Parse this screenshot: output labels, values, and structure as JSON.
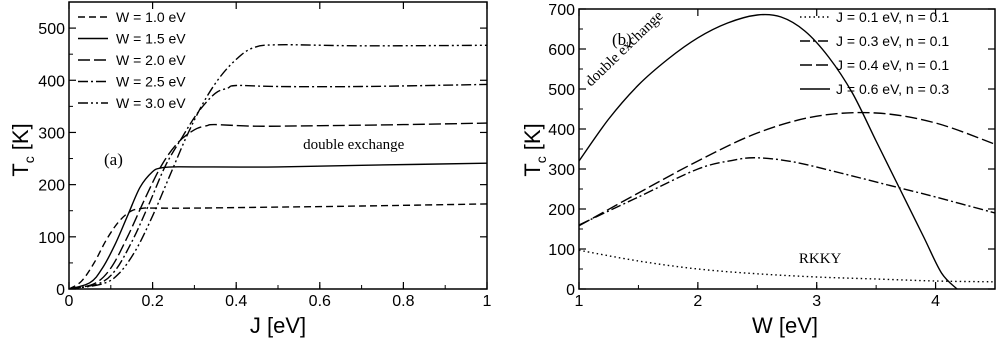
{
  "chart_data": [
    {
      "type": "line",
      "panel_label": "(a)",
      "xlabel": "J [eV]",
      "ylabel_main": "T",
      "ylabel_sub": "c",
      "ylabel_unit": "[K]",
      "xlim": [
        0,
        1
      ],
      "ylim": [
        0,
        550
      ],
      "x_ticks": [
        "0",
        "0.2",
        "0.4",
        "0.6",
        "0.8",
        "1"
      ],
      "y_ticks": [
        "0",
        "100",
        "200",
        "300",
        "400",
        "500"
      ],
      "legend_position": "top-left",
      "annotations": [
        {
          "text": "double exchange",
          "x": 0.56,
          "y": 268
        }
      ],
      "series": [
        {
          "name": "W = 1.0 eV",
          "dash": "dash",
          "x": [
            0,
            0.03,
            0.06,
            0.09,
            0.12,
            0.15,
            0.18,
            0.2,
            0.3,
            0.5,
            0.7,
            1.0
          ],
          "y": [
            0,
            15,
            50,
            95,
            130,
            150,
            155,
            155,
            155,
            157,
            159,
            163
          ]
        },
        {
          "name": "W = 1.5 eV",
          "dash": "solid",
          "x": [
            0,
            0.05,
            0.08,
            0.11,
            0.14,
            0.17,
            0.2,
            0.22,
            0.25,
            0.3,
            0.5,
            0.7,
            1.0
          ],
          "y": [
            0,
            12,
            40,
            85,
            140,
            195,
            225,
            232,
            234,
            234,
            234,
            237,
            241
          ]
        },
        {
          "name": "W = 2.0 eV",
          "dash": "longdash",
          "x": [
            0,
            0.06,
            0.1,
            0.14,
            0.18,
            0.22,
            0.26,
            0.3,
            0.33,
            0.35,
            0.45,
            0.6,
            0.8,
            1.0
          ],
          "y": [
            0,
            10,
            40,
            100,
            170,
            235,
            280,
            305,
            313,
            315,
            312,
            313,
            315,
            318
          ]
        },
        {
          "name": "W = 2.5 eV",
          "dash": "dashdot",
          "x": [
            0,
            0.07,
            0.11,
            0.15,
            0.19,
            0.23,
            0.27,
            0.31,
            0.35,
            0.38,
            0.4,
            0.5,
            0.7,
            1.0
          ],
          "y": [
            0,
            10,
            35,
            90,
            160,
            235,
            290,
            340,
            375,
            385,
            390,
            388,
            388,
            392
          ]
        },
        {
          "name": "W = 3.0 eV",
          "dash": "dashdotdot",
          "x": [
            0,
            0.08,
            0.12,
            0.16,
            0.2,
            0.24,
            0.28,
            0.32,
            0.36,
            0.4,
            0.44,
            0.5,
            0.7,
            1.0
          ],
          "y": [
            0,
            10,
            30,
            75,
            140,
            215,
            290,
            355,
            405,
            440,
            462,
            468,
            466,
            467
          ]
        }
      ]
    },
    {
      "type": "line",
      "panel_label": "(b)",
      "xlabel": "W [eV]",
      "ylabel_main": "T",
      "ylabel_sub": "c",
      "ylabel_unit": "[K]",
      "xlim": [
        1,
        4.5
      ],
      "ylim": [
        0,
        700
      ],
      "x_ticks": [
        "1",
        "2",
        "3",
        "4"
      ],
      "y_ticks": [
        "0",
        "100",
        "200",
        "300",
        "400",
        "500",
        "600",
        "700"
      ],
      "legend_position": "top-right",
      "annotations": [
        {
          "text": "double exchange",
          "x": 1.1,
          "y": 505,
          "rotate": -44
        },
        {
          "text": "RKKY",
          "x": 2.85,
          "y": 65
        }
      ],
      "series": [
        {
          "name": "J = 0.1 eV, n = 0.1",
          "dash": "dotted",
          "x": [
            1,
            1.5,
            2,
            2.5,
            3,
            3.5,
            4,
            4.5
          ],
          "y": [
            97,
            70,
            50,
            38,
            30,
            25,
            20,
            18
          ]
        },
        {
          "name": "J = 0.3 eV, n = 0.1",
          "dash": "dashdot",
          "x": [
            1,
            1.5,
            2,
            2.3,
            2.5,
            2.8,
            3.2,
            3.6,
            4,
            4.5
          ],
          "y": [
            160,
            230,
            300,
            322,
            328,
            318,
            290,
            260,
            230,
            190
          ]
        },
        {
          "name": "J = 0.4 eV, n = 0.1",
          "dash": "longdash",
          "x": [
            1,
            1.5,
            2,
            2.5,
            3,
            3.5,
            4,
            4.5
          ],
          "y": [
            158,
            240,
            320,
            390,
            432,
            440,
            415,
            362
          ]
        },
        {
          "name": "J = 0.6 eV, n = 0.3",
          "dash": "solid",
          "x": [
            1,
            1.25,
            1.5,
            1.75,
            2,
            2.25,
            2.5,
            2.7,
            2.9,
            3.1,
            3.3,
            3.5,
            3.7,
            3.9,
            4.05,
            4.18
          ],
          "y": [
            320,
            425,
            510,
            575,
            628,
            665,
            685,
            680,
            645,
            580,
            490,
            370,
            250,
            130,
            40,
            0
          ]
        }
      ]
    }
  ]
}
